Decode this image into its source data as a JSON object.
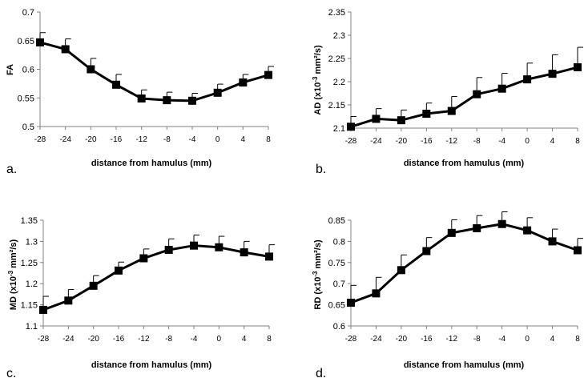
{
  "colors": {
    "line": "#000000",
    "axis": "#808080",
    "background": "#ffffff"
  },
  "chart_data": [
    {
      "type": "line",
      "panel_label": "a.",
      "xlabel": "distance from hamulus (mm)",
      "ylabel": "FA",
      "ylabel_sup": "",
      "ylabel_tail": "",
      "categories": [
        "-28",
        "-24",
        "-20",
        "-16",
        "-12",
        "-8",
        "-4",
        "0",
        "4",
        "8"
      ],
      "values": [
        0.647,
        0.635,
        0.6,
        0.573,
        0.549,
        0.546,
        0.545,
        0.559,
        0.577,
        0.59
      ],
      "errors": [
        0.017,
        0.018,
        0.019,
        0.018,
        0.015,
        0.014,
        0.013,
        0.015,
        0.014,
        0.015
      ],
      "ylim": [
        0.5,
        0.7
      ],
      "yticks": [
        "0.5",
        "0.55",
        "0.6",
        "0.65",
        "0.7"
      ]
    },
    {
      "type": "line",
      "panel_label": "b.",
      "xlabel": "distance from hamulus (mm)",
      "ylabel": "AD (x10",
      "ylabel_sup": "-3",
      "ylabel_tail": " mm²/s)",
      "categories": [
        "-28",
        "-24",
        "-20",
        "-16",
        "-12",
        "-8",
        "-4",
        "0",
        "4",
        "8"
      ],
      "values": [
        2.103,
        2.12,
        2.117,
        2.131,
        2.137,
        2.173,
        2.185,
        2.205,
        2.217,
        2.231
      ],
      "errors": [
        0.022,
        0.022,
        0.022,
        0.023,
        0.031,
        0.036,
        0.033,
        0.035,
        0.041,
        0.043
      ],
      "ylim": [
        2.1,
        2.35
      ],
      "yticks": [
        "2.1",
        "2.15",
        "2.2",
        "2.25",
        "2.3",
        "2.35"
      ]
    },
    {
      "type": "line",
      "panel_label": "c.",
      "xlabel": "distance from hamulus (mm)",
      "ylabel": "MD (x10",
      "ylabel_sup": "-3",
      "ylabel_tail": " mm²/s)",
      "categories": [
        "-28",
        "-24",
        "-20",
        "-16",
        "-12",
        "-8",
        "-4",
        "0",
        "4",
        "8"
      ],
      "values": [
        1.138,
        1.16,
        1.195,
        1.231,
        1.26,
        1.28,
        1.29,
        1.286,
        1.274,
        1.264
      ],
      "errors": [
        0.032,
        0.026,
        0.024,
        0.02,
        0.022,
        0.026,
        0.025,
        0.026,
        0.026,
        0.028
      ],
      "ylim": [
        1.1,
        1.35
      ],
      "yticks": [
        "1.1",
        "1.15",
        "1.2",
        "1.25",
        "1.3",
        "1.35"
      ]
    },
    {
      "type": "line",
      "panel_label": "d.",
      "xlabel": "distance from hamulus (mm)",
      "ylabel": "RD (x10",
      "ylabel_sup": "-3",
      "ylabel_tail": " mm²/s)",
      "categories": [
        "-28",
        "-24",
        "-20",
        "-16",
        "-12",
        "-8",
        "-4",
        "0",
        "4",
        "8"
      ],
      "values": [
        0.655,
        0.677,
        0.732,
        0.777,
        0.82,
        0.831,
        0.841,
        0.826,
        0.8,
        0.779
      ],
      "errors": [
        0.041,
        0.038,
        0.036,
        0.032,
        0.031,
        0.03,
        0.029,
        0.03,
        0.029,
        0.028
      ],
      "ylim": [
        0.6,
        0.85
      ],
      "yticks": [
        "0.6",
        "0.65",
        "0.7",
        "0.75",
        "0.8",
        "0.85"
      ]
    }
  ]
}
